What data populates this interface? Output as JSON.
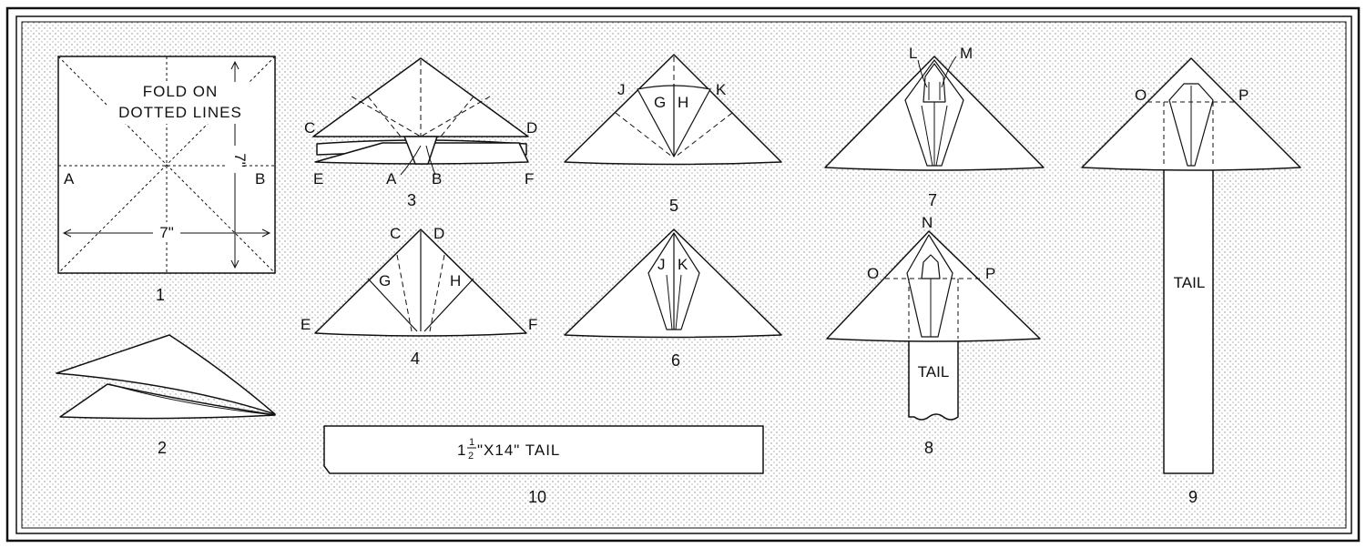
{
  "colors": {
    "ink": "#111111",
    "paper": "#ffffff",
    "stipple": "#8a8a8a"
  },
  "fig1": {
    "title_line1": "FOLD ON",
    "title_line2": "DOTTED LINES",
    "point_a": "A",
    "point_b": "B",
    "width_dim": "7\"",
    "height_dim": "7\"",
    "number": "1"
  },
  "fig2": {
    "number": "2"
  },
  "fig3": {
    "c": "C",
    "d": "D",
    "e": "E",
    "a": "A",
    "b": "B",
    "f": "F",
    "number": "3"
  },
  "fig4": {
    "c": "C",
    "d": "D",
    "g": "G",
    "h": "H",
    "e": "E",
    "f": "F",
    "number": "4"
  },
  "fig5": {
    "j": "J",
    "k": "K",
    "g": "G",
    "h": "H",
    "number": "5"
  },
  "fig6": {
    "j": "J",
    "k": "K",
    "number": "6"
  },
  "fig7": {
    "l": "L",
    "m": "M",
    "number": "7"
  },
  "fig8": {
    "n": "N",
    "o": "O",
    "p": "P",
    "tail": "TAIL",
    "number": "8"
  },
  "fig9": {
    "o": "O",
    "p": "P",
    "tail": "TAIL",
    "number": "9"
  },
  "fig10": {
    "whole": "1",
    "frac_num": "1",
    "frac_den": "2",
    "rest": "\"X14\" TAIL",
    "number": "10"
  }
}
